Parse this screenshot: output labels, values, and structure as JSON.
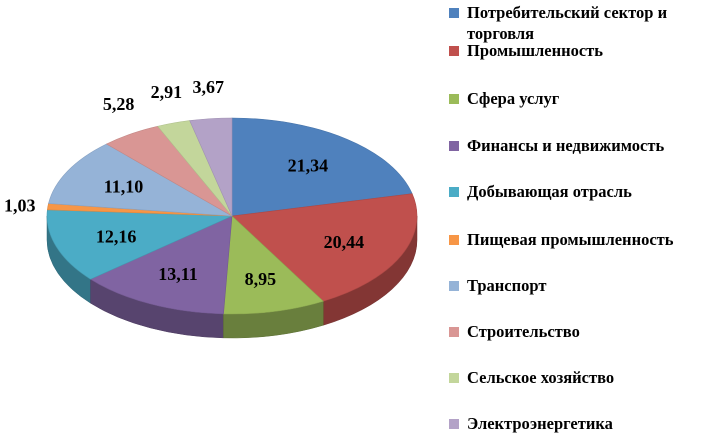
{
  "chart_data": {
    "type": "pie",
    "variant": "3d",
    "title": "",
    "categories": [
      "Потребительский сектор и торговля",
      "Промышленность",
      "Сфера услуг",
      "Финансы и недвижимость",
      "Добывающая отрасль",
      "Пищевая промышленность",
      "Транспорт",
      "Строительство",
      "Сельское хозяйство",
      "Электроэнергетика"
    ],
    "values": [
      21.34,
      20.44,
      8.95,
      13.11,
      12.16,
      1.03,
      11.1,
      5.28,
      2.91,
      3.67
    ],
    "value_labels": [
      "21,34",
      "20,44",
      "8,95",
      "13,11",
      "12,16",
      "1,03",
      "11,10",
      "5,28",
      "2,91",
      "3,67"
    ],
    "colors": [
      "#4F81BD",
      "#C0504D",
      "#9BBB59",
      "#8064A2",
      "#4BACC6",
      "#F79646",
      "#95B3D7",
      "#D99694",
      "#C3D69B",
      "#B3A2C7"
    ],
    "legend_position": "right"
  }
}
